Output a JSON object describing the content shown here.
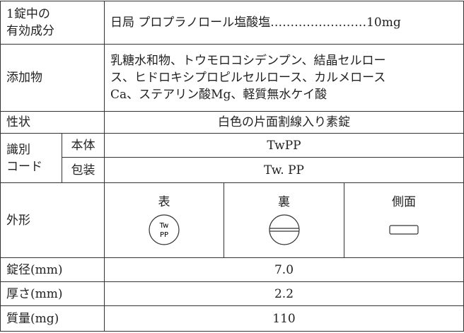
{
  "rows": [
    {
      "label": [
        "1錠中の",
        "有効成分"
      ],
      "value": "日局 プロプラノロール塩酸塩……………………10mg"
    },
    {
      "label": "添加物",
      "value": [
        "乳糖水和物、トウモロコシデンプン、結晶セルロー",
        "ス、ヒドロキシプロピルセルロース、カルメロース",
        "Ca、ステアリン酸Mg、軽質無水ケイ酸"
      ]
    },
    {
      "label": "性状",
      "value": "白色の片面割線入り素錠"
    },
    {
      "label": [
        "識別",
        "コード"
      ],
      "sub": [
        {
          "label": "本体",
          "value": "TwPP"
        },
        {
          "label": "包装",
          "value": "Tw. PP"
        }
      ]
    },
    {
      "label": "外形",
      "views": [
        {
          "label": "表",
          "imprint": [
            "Tw",
            "PP"
          ]
        },
        {
          "label": "裏"
        },
        {
          "label": "側面"
        }
      ]
    },
    {
      "label": "錠径(mm)",
      "value": "7.0"
    },
    {
      "label": "厚さ(mm)",
      "value": "2.2"
    },
    {
      "label": "質量(mg)",
      "value": "110"
    }
  ]
}
